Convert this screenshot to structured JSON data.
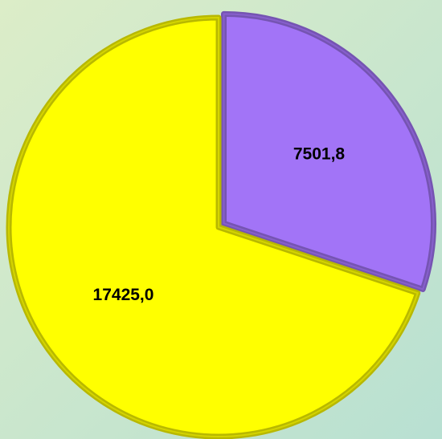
{
  "chart_data": {
    "type": "pie",
    "values": [
      7501.8,
      17425.0
    ],
    "value_labels": [
      "7501,8",
      "17425,0"
    ],
    "colors": [
      "#a274f7",
      "#ffff00"
    ]
  }
}
